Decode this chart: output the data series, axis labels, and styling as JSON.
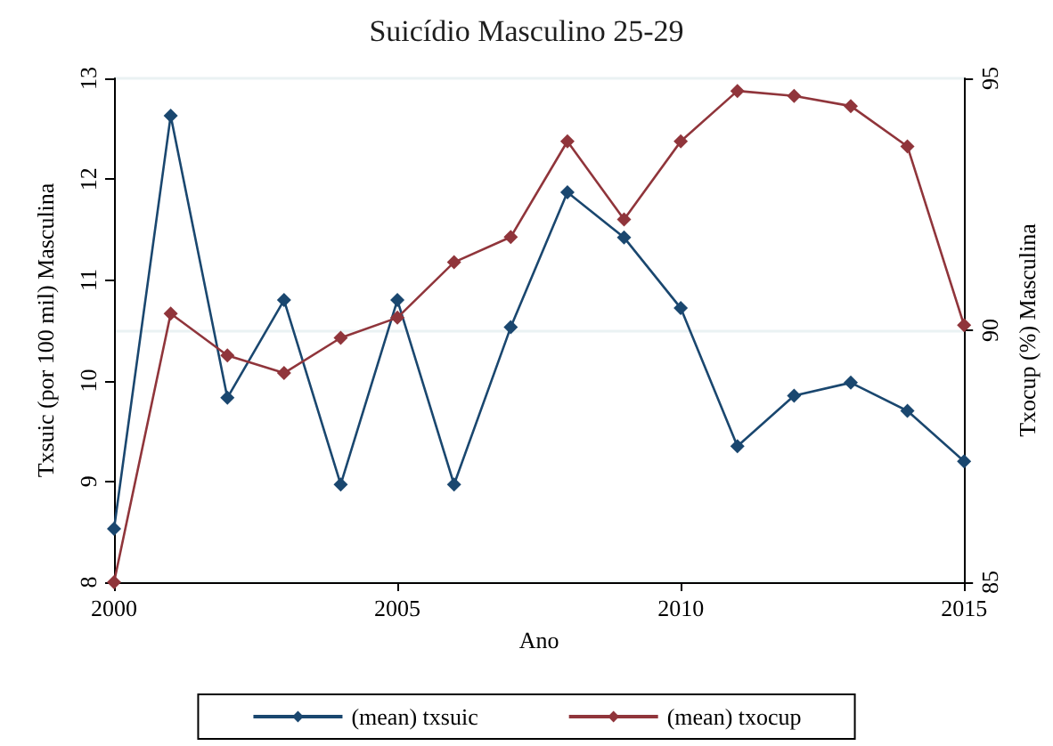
{
  "chart_data": {
    "type": "line",
    "title": "Suicídio Masculino 25-29",
    "xlabel": "Ano",
    "ylabel": "Txsuic (por 100 mil) Masculina",
    "y2label": "Txocup (%) Masculina",
    "x": [
      2000,
      2001,
      2002,
      2003,
      2004,
      2005,
      2006,
      2007,
      2008,
      2009,
      2010,
      2011,
      2012,
      2013,
      2014,
      2015
    ],
    "series": [
      {
        "name": "(mean) txsuic",
        "color": "#1a476f",
        "values": [
          8.53,
          12.63,
          9.83,
          10.8,
          8.97,
          10.8,
          8.97,
          10.53,
          11.87,
          11.42,
          10.72,
          9.35,
          9.85,
          9.98,
          9.7,
          9.2
        ]
      },
      {
        "name": "(mean) txocup",
        "color": "#90353b",
        "axis": "y2",
        "values": [
          85.0,
          90.33,
          89.5,
          89.15,
          89.85,
          90.25,
          91.35,
          91.85,
          93.75,
          92.2,
          93.75,
          94.75,
          94.65,
          94.45,
          93.65,
          90.1
        ]
      }
    ],
    "xlim": [
      2000,
      2015
    ],
    "xticks": [
      2000,
      2005,
      2010,
      2015
    ],
    "ylim": [
      8,
      13
    ],
    "yticks": [
      8,
      9,
      10,
      11,
      12,
      13
    ],
    "y2lim": [
      85,
      95
    ],
    "y2ticks": [
      85,
      90,
      95
    ],
    "grid": "y",
    "legend": "bottom",
    "marker": "diamond",
    "line_style": "solid"
  }
}
